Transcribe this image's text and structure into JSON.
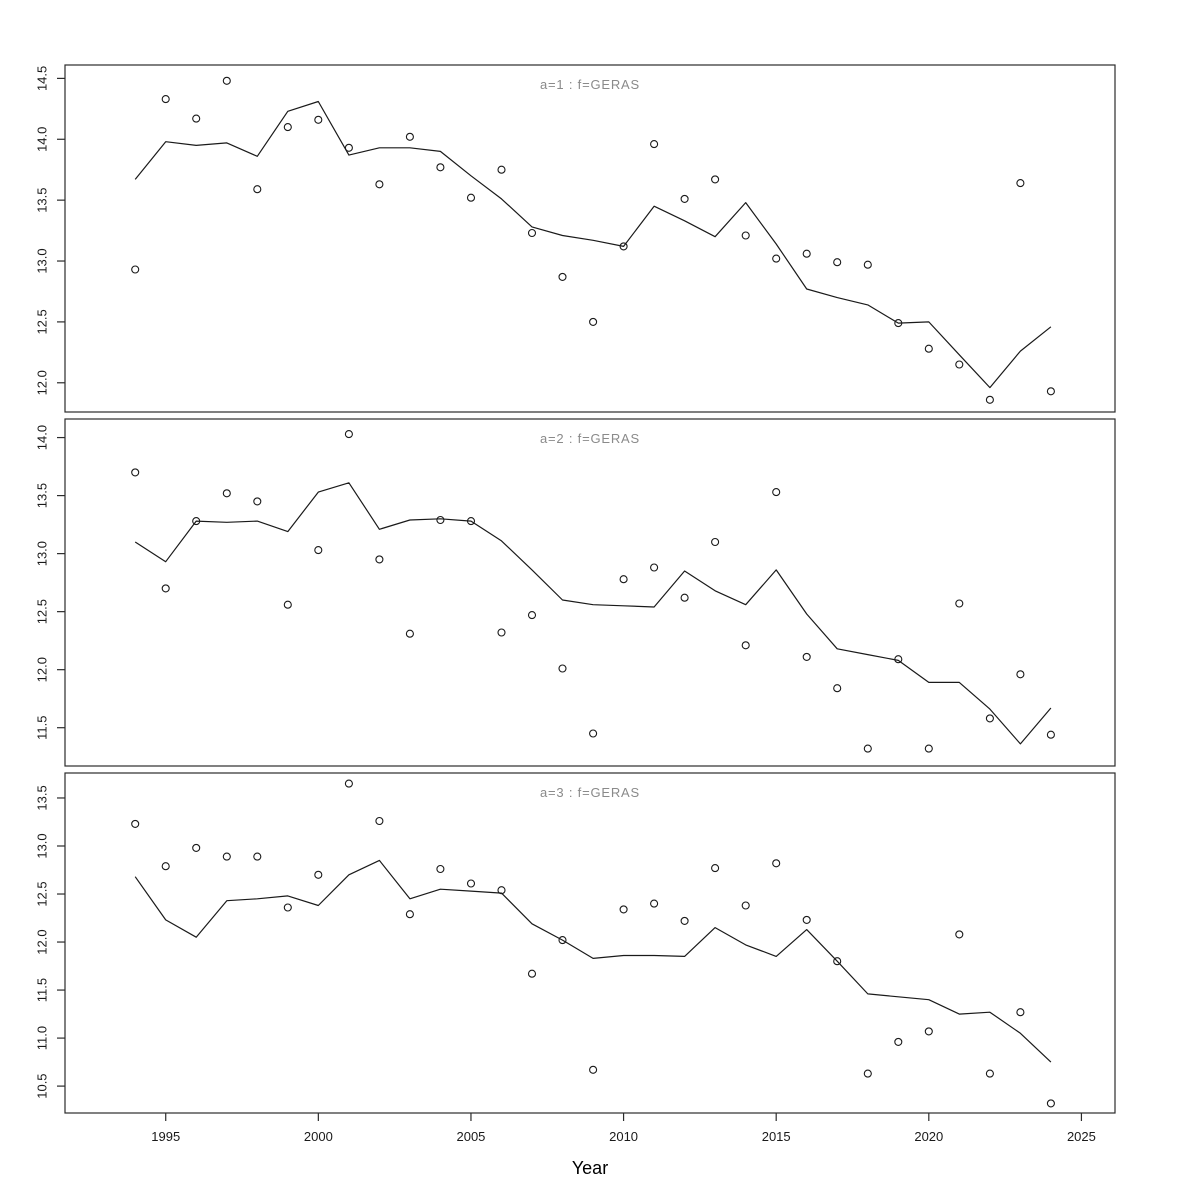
{
  "figure": {
    "xlabel": "Year",
    "background_color": "#ffffff",
    "panel_border_color": "#2b2b2b",
    "tick_color": "#2b2b2b",
    "tick_label_color": "#1a1a1a",
    "strip_title_color": "#8a8a8a",
    "line_color": "#1a1a1a",
    "point_color": "#1a1a1a"
  },
  "chart_data": {
    "type": "scatter",
    "xlabel": "Year",
    "grid": false,
    "legend": null,
    "x_ticks": [
      1995,
      2000,
      2005,
      2010,
      2015,
      2020,
      2025
    ],
    "x_range": [
      1991.7,
      2026.1
    ],
    "years": [
      1994,
      1995,
      1996,
      1997,
      1998,
      1999,
      2000,
      2001,
      2002,
      2003,
      2004,
      2005,
      2006,
      2007,
      2008,
      2009,
      2010,
      2011,
      2012,
      2013,
      2014,
      2015,
      2016,
      2017,
      2018,
      2019,
      2020,
      2021,
      2022,
      2023,
      2024
    ],
    "panels": [
      {
        "title": "a=1 : f=GERAS",
        "ylim": [
          11.76,
          14.61
        ],
        "yticks": [
          12.0,
          12.5,
          13.0,
          13.5,
          14.0,
          14.5
        ],
        "points": [
          12.93,
          14.33,
          14.17,
          14.48,
          13.59,
          14.1,
          14.16,
          13.93,
          13.63,
          14.02,
          13.77,
          13.52,
          13.75,
          13.23,
          12.87,
          12.5,
          13.12,
          13.96,
          13.51,
          13.67,
          13.21,
          13.02,
          13.06,
          12.99,
          12.97,
          12.49,
          12.28,
          12.15,
          11.86,
          13.64,
          11.93
        ],
        "line": [
          13.67,
          13.98,
          13.95,
          13.97,
          13.86,
          14.23,
          14.31,
          13.87,
          13.93,
          13.93,
          13.9,
          13.7,
          13.51,
          13.28,
          13.21,
          13.17,
          13.12,
          13.45,
          13.33,
          13.2,
          13.48,
          13.14,
          12.77,
          12.7,
          12.64,
          12.49,
          12.5,
          12.23,
          11.96,
          12.26,
          12.46
        ]
      },
      {
        "title": "a=2 : f=GERAS",
        "ylim": [
          11.17,
          14.16
        ],
        "yticks": [
          11.5,
          12.0,
          12.5,
          13.0,
          13.5,
          14.0
        ],
        "points": [
          13.7,
          12.7,
          13.28,
          13.52,
          13.45,
          12.56,
          13.03,
          14.03,
          12.95,
          12.31,
          13.29,
          13.28,
          12.32,
          12.47,
          12.01,
          11.45,
          12.78,
          12.88,
          12.62,
          13.1,
          12.21,
          13.53,
          12.11,
          11.84,
          11.32,
          12.09,
          11.32,
          12.57,
          11.58,
          11.96,
          11.44
        ],
        "line": [
          13.1,
          12.93,
          13.28,
          13.27,
          13.28,
          13.19,
          13.53,
          13.61,
          13.21,
          13.29,
          13.3,
          13.28,
          13.11,
          12.86,
          12.6,
          12.56,
          12.55,
          12.54,
          12.85,
          12.68,
          12.56,
          12.86,
          12.48,
          12.18,
          12.13,
          12.08,
          11.89,
          11.89,
          11.66,
          11.36,
          11.67
        ]
      },
      {
        "title": "a=3 : f=GERAS",
        "ylim": [
          10.22,
          13.76
        ],
        "yticks": [
          10.5,
          11.0,
          11.5,
          12.0,
          12.5,
          13.0,
          13.5
        ],
        "points": [
          13.23,
          12.79,
          12.98,
          12.89,
          12.89,
          12.36,
          12.7,
          13.65,
          13.26,
          12.29,
          12.76,
          12.61,
          12.54,
          11.67,
          12.02,
          10.67,
          12.34,
          12.4,
          12.22,
          12.77,
          12.38,
          12.82,
          12.23,
          11.8,
          10.63,
          10.96,
          11.07,
          12.08,
          10.63,
          11.27,
          10.32
        ],
        "line": [
          12.68,
          12.23,
          12.05,
          12.43,
          12.45,
          12.48,
          12.38,
          12.7,
          12.85,
          12.45,
          12.55,
          12.53,
          12.51,
          12.19,
          12.02,
          11.83,
          11.86,
          11.86,
          11.85,
          12.15,
          11.97,
          11.85,
          12.13,
          11.8,
          11.46,
          11.43,
          11.4,
          11.25,
          11.27,
          11.05,
          10.75
        ]
      }
    ]
  }
}
